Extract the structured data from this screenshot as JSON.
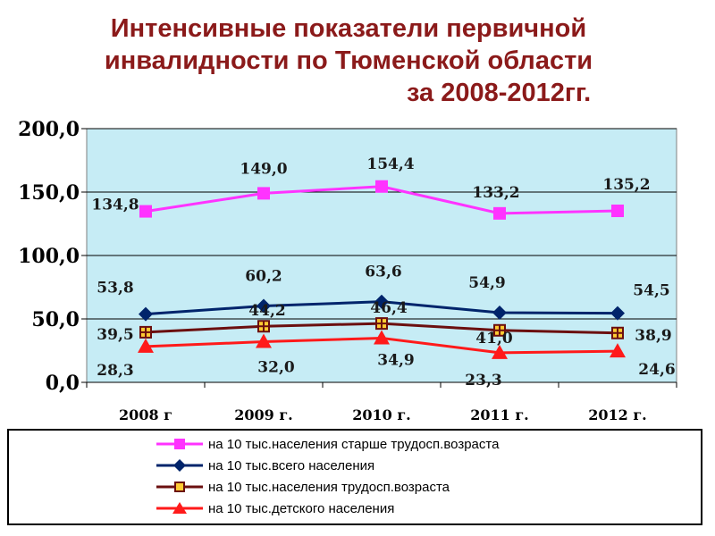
{
  "title": {
    "line1": "Интенсивные показатели первичной",
    "line2": "инвалидности по Тюменской области",
    "line3": "за 2008-2012гг."
  },
  "chart_data": {
    "type": "line",
    "title": "Интенсивные показатели первичной инвалидности по Тюменской области за 2008-2012гг.",
    "categories": [
      "2008 г",
      "2009 г.",
      "2010 г.",
      "2011 г.",
      "2012 г."
    ],
    "ylim": [
      0,
      200
    ],
    "yticks": [
      "0,0",
      "50,0",
      "100,0",
      "150,0",
      "200,0"
    ],
    "grid": true,
    "legend_position": "bottom",
    "plot_background": "#c6ecf5",
    "series": [
      {
        "name": "на 10 тыс.населения  старше трудосп.возраста",
        "values": [
          134.8,
          149.0,
          154.4,
          133.2,
          135.2
        ],
        "labels": [
          "134,8",
          "149,0",
          "154,4",
          "133,2",
          "135,2"
        ],
        "color": "#ff33ff",
        "marker": "square"
      },
      {
        "name": "на 10 тыс.всего населения",
        "values": [
          53.8,
          60.2,
          63.6,
          54.9,
          54.5
        ],
        "labels": [
          "53,8",
          "60,2",
          "63,6",
          "54,9",
          "54,5"
        ],
        "color": "#00246b",
        "marker": "diamond"
      },
      {
        "name": "на 10 тыс.населения трудосп.возраста",
        "values": [
          39.5,
          44.2,
          46.4,
          41.0,
          38.9
        ],
        "labels": [
          "39,5",
          "44,2",
          "46,4",
          "41,0",
          "38,9"
        ],
        "color": "#6b0f0f",
        "marker": "cross-square"
      },
      {
        "name": "на 10 тыс.детского населения",
        "values": [
          28.3,
          32.0,
          34.9,
          23.3,
          24.6
        ],
        "labels": [
          "28,3",
          "32,0",
          "34,9",
          "23,3",
          "24,6"
        ],
        "color": "#ff1a1a",
        "marker": "triangle"
      }
    ]
  }
}
